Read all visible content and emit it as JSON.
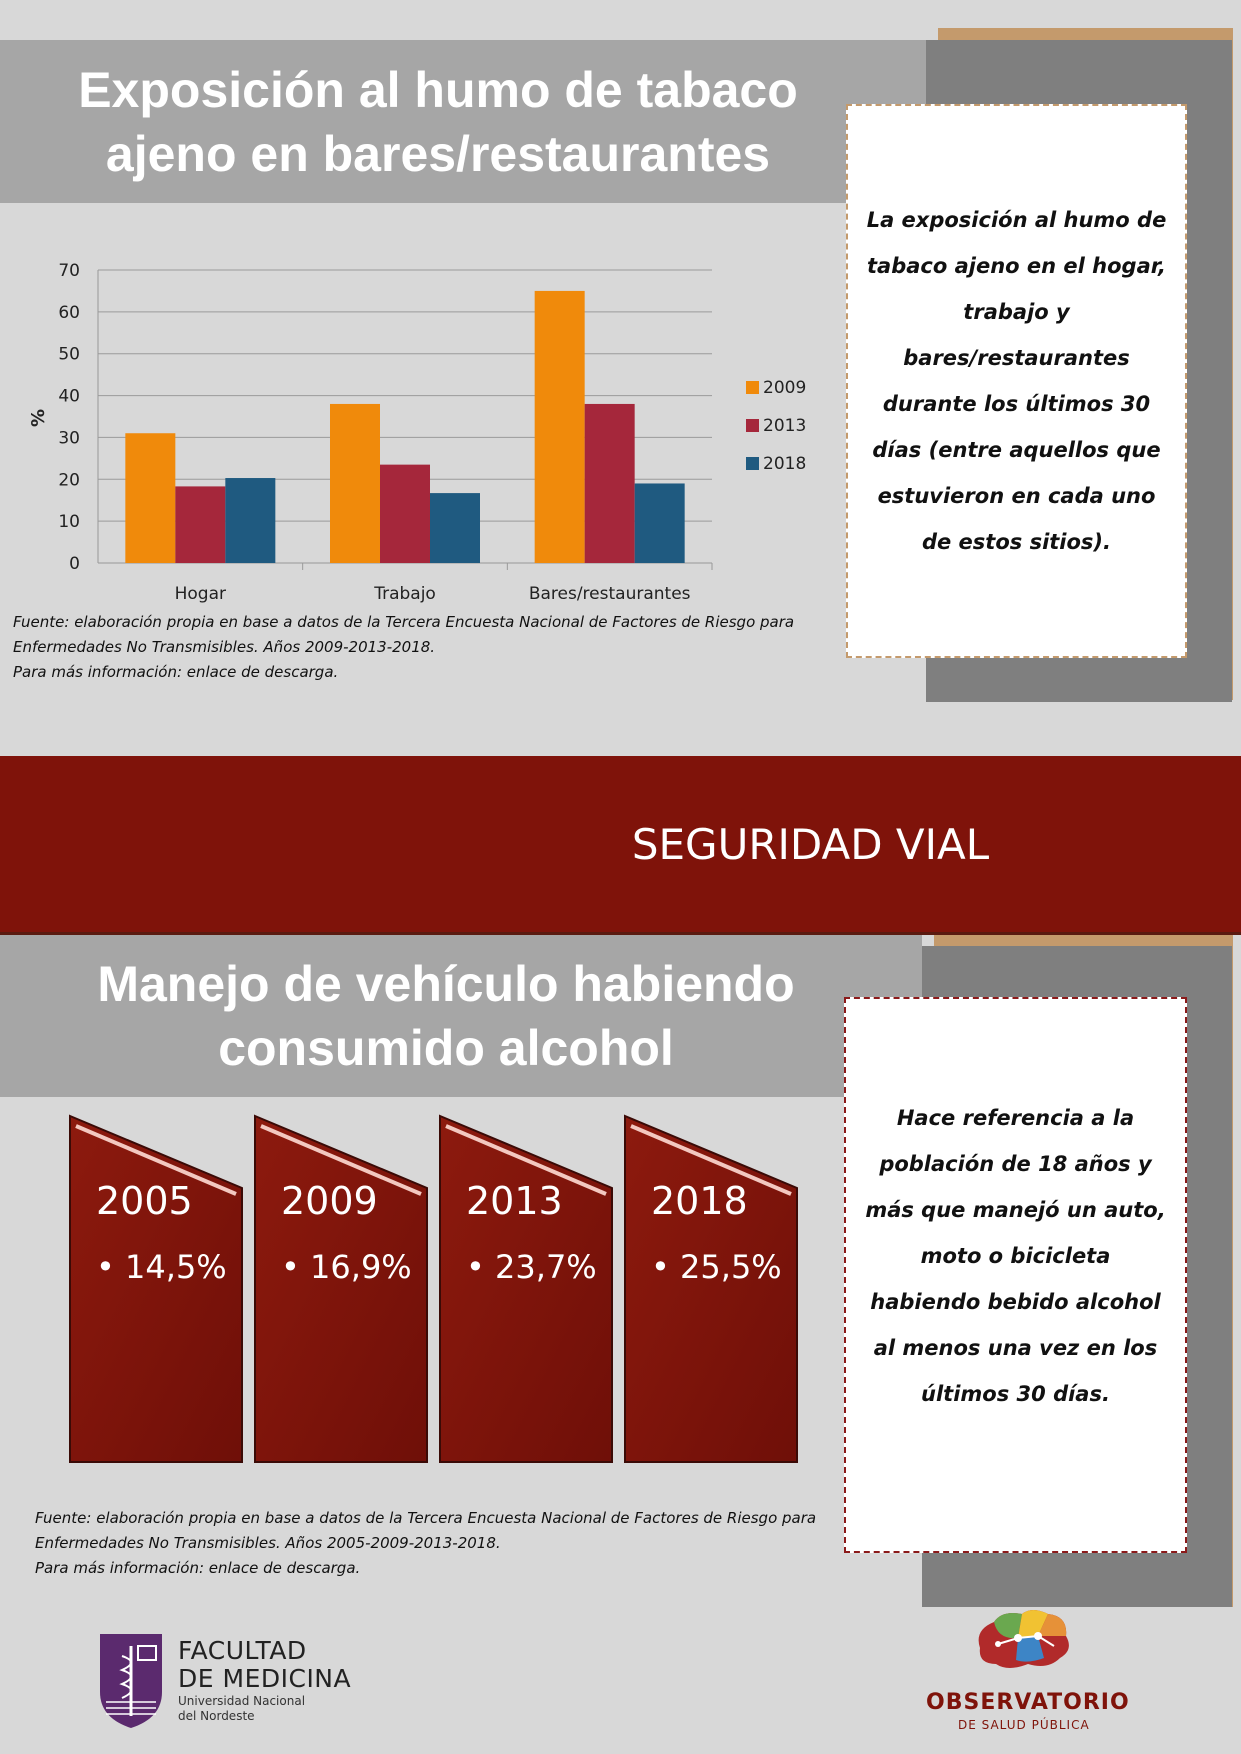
{
  "section1": {
    "title_line1": "Exposición al humo de tabaco",
    "title_line2": "ajeno en bares/restaurantes",
    "callout": "La exposición al humo de tabaco ajeno en el hogar, trabajo y bares/restaurantes durante los últimos 30 días (entre aquellos que estuvieron en cada uno de estos sitios).",
    "source_line1": "Fuente: elaboración propia en base a datos de la Tercera Encuesta Nacional de Factores de Riesgo para",
    "source_line2": "Enfermedades No Transmisibles. Años 2009-2013-2018.",
    "source_line3": "Para más información: enlace de descarga."
  },
  "chart_data": {
    "type": "bar",
    "categories": [
      "Hogar",
      "Trabajo",
      "Bares/restaurantes"
    ],
    "series": [
      {
        "name": "2009",
        "color": "#f08a0b",
        "values": [
          31,
          38,
          65
        ]
      },
      {
        "name": "2013",
        "color": "#a5273b",
        "values": [
          18.3,
          23.5,
          38
        ]
      },
      {
        "name": "2018",
        "color": "#1f5a80",
        "values": [
          20.3,
          16.7,
          19
        ]
      }
    ],
    "ylabel": "%",
    "ylim": [
      0,
      70
    ],
    "yticks": [
      "0",
      "10",
      "20",
      "30",
      "40",
      "50",
      "60",
      "70"
    ],
    "grid": true,
    "legend": "right"
  },
  "section_band": {
    "label": "SEGURIDAD VIAL"
  },
  "section2": {
    "title_line1": "Manejo de vehículo habiendo",
    "title_line2": "consumido alcohol",
    "callout": "Hace referencia a la población de 18 años y más que manejó un auto, moto o bicicleta habiendo bebido alcohol al menos una vez en los últimos 30 días.",
    "cards": [
      {
        "year": "2005",
        "value": "• 14,5%"
      },
      {
        "year": "2009",
        "value": "• 16,9%"
      },
      {
        "year": "2013",
        "value": "• 23,7%"
      },
      {
        "year": "2018",
        "value": "• 25,5%"
      }
    ],
    "source_line1": "Fuente: elaboración propia en base a datos de la Tercera Encuesta Nacional de Factores de Riesgo para",
    "source_line2": "Enfermedades No Transmisibles. Años 2005-2009-2013-2018.",
    "source_line3": "Para más información: enlace de descarga."
  },
  "footer": {
    "fac_line1": "FACULTAD",
    "fac_line2": "DE MEDICINA",
    "fac_line3": "Universidad Nacional",
    "fac_line4": "del Nordeste",
    "obs_line1": "OBSERVATORIO",
    "obs_line2": "DE SALUD PÚBLICA"
  }
}
